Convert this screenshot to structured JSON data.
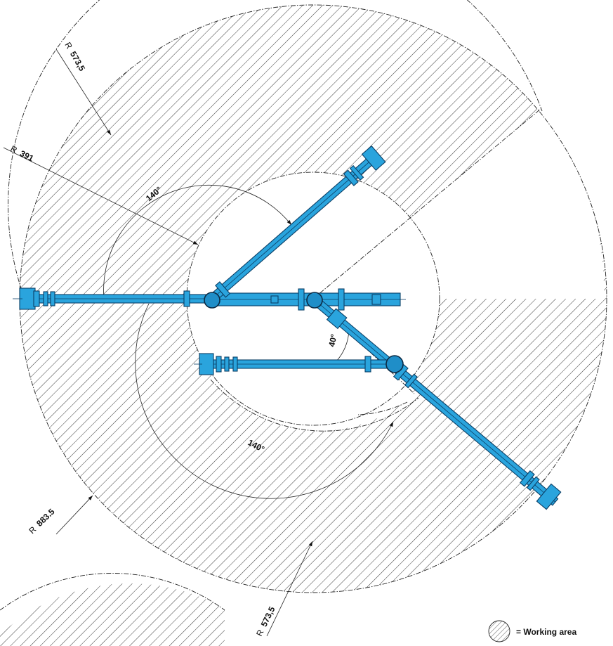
{
  "dimensions": {
    "r_outer_top": {
      "prefix": "R",
      "value": "573,5"
    },
    "r_inner": {
      "prefix": "R",
      "value": "391"
    },
    "r_outer_main": {
      "prefix": "R",
      "value": "883.5"
    },
    "r_outer_bottom": {
      "prefix": "R",
      "value": "573,5"
    }
  },
  "angles": {
    "upper_swing": "140°",
    "lower_swing": "140°",
    "elbow": "40°"
  },
  "legend": {
    "label": "= Working area",
    "icon": "hatched-circle-icon"
  },
  "colors": {
    "arm_fill": "#2aa4dd",
    "arm_outline": "#0b3f66",
    "hatch": "#222222"
  }
}
